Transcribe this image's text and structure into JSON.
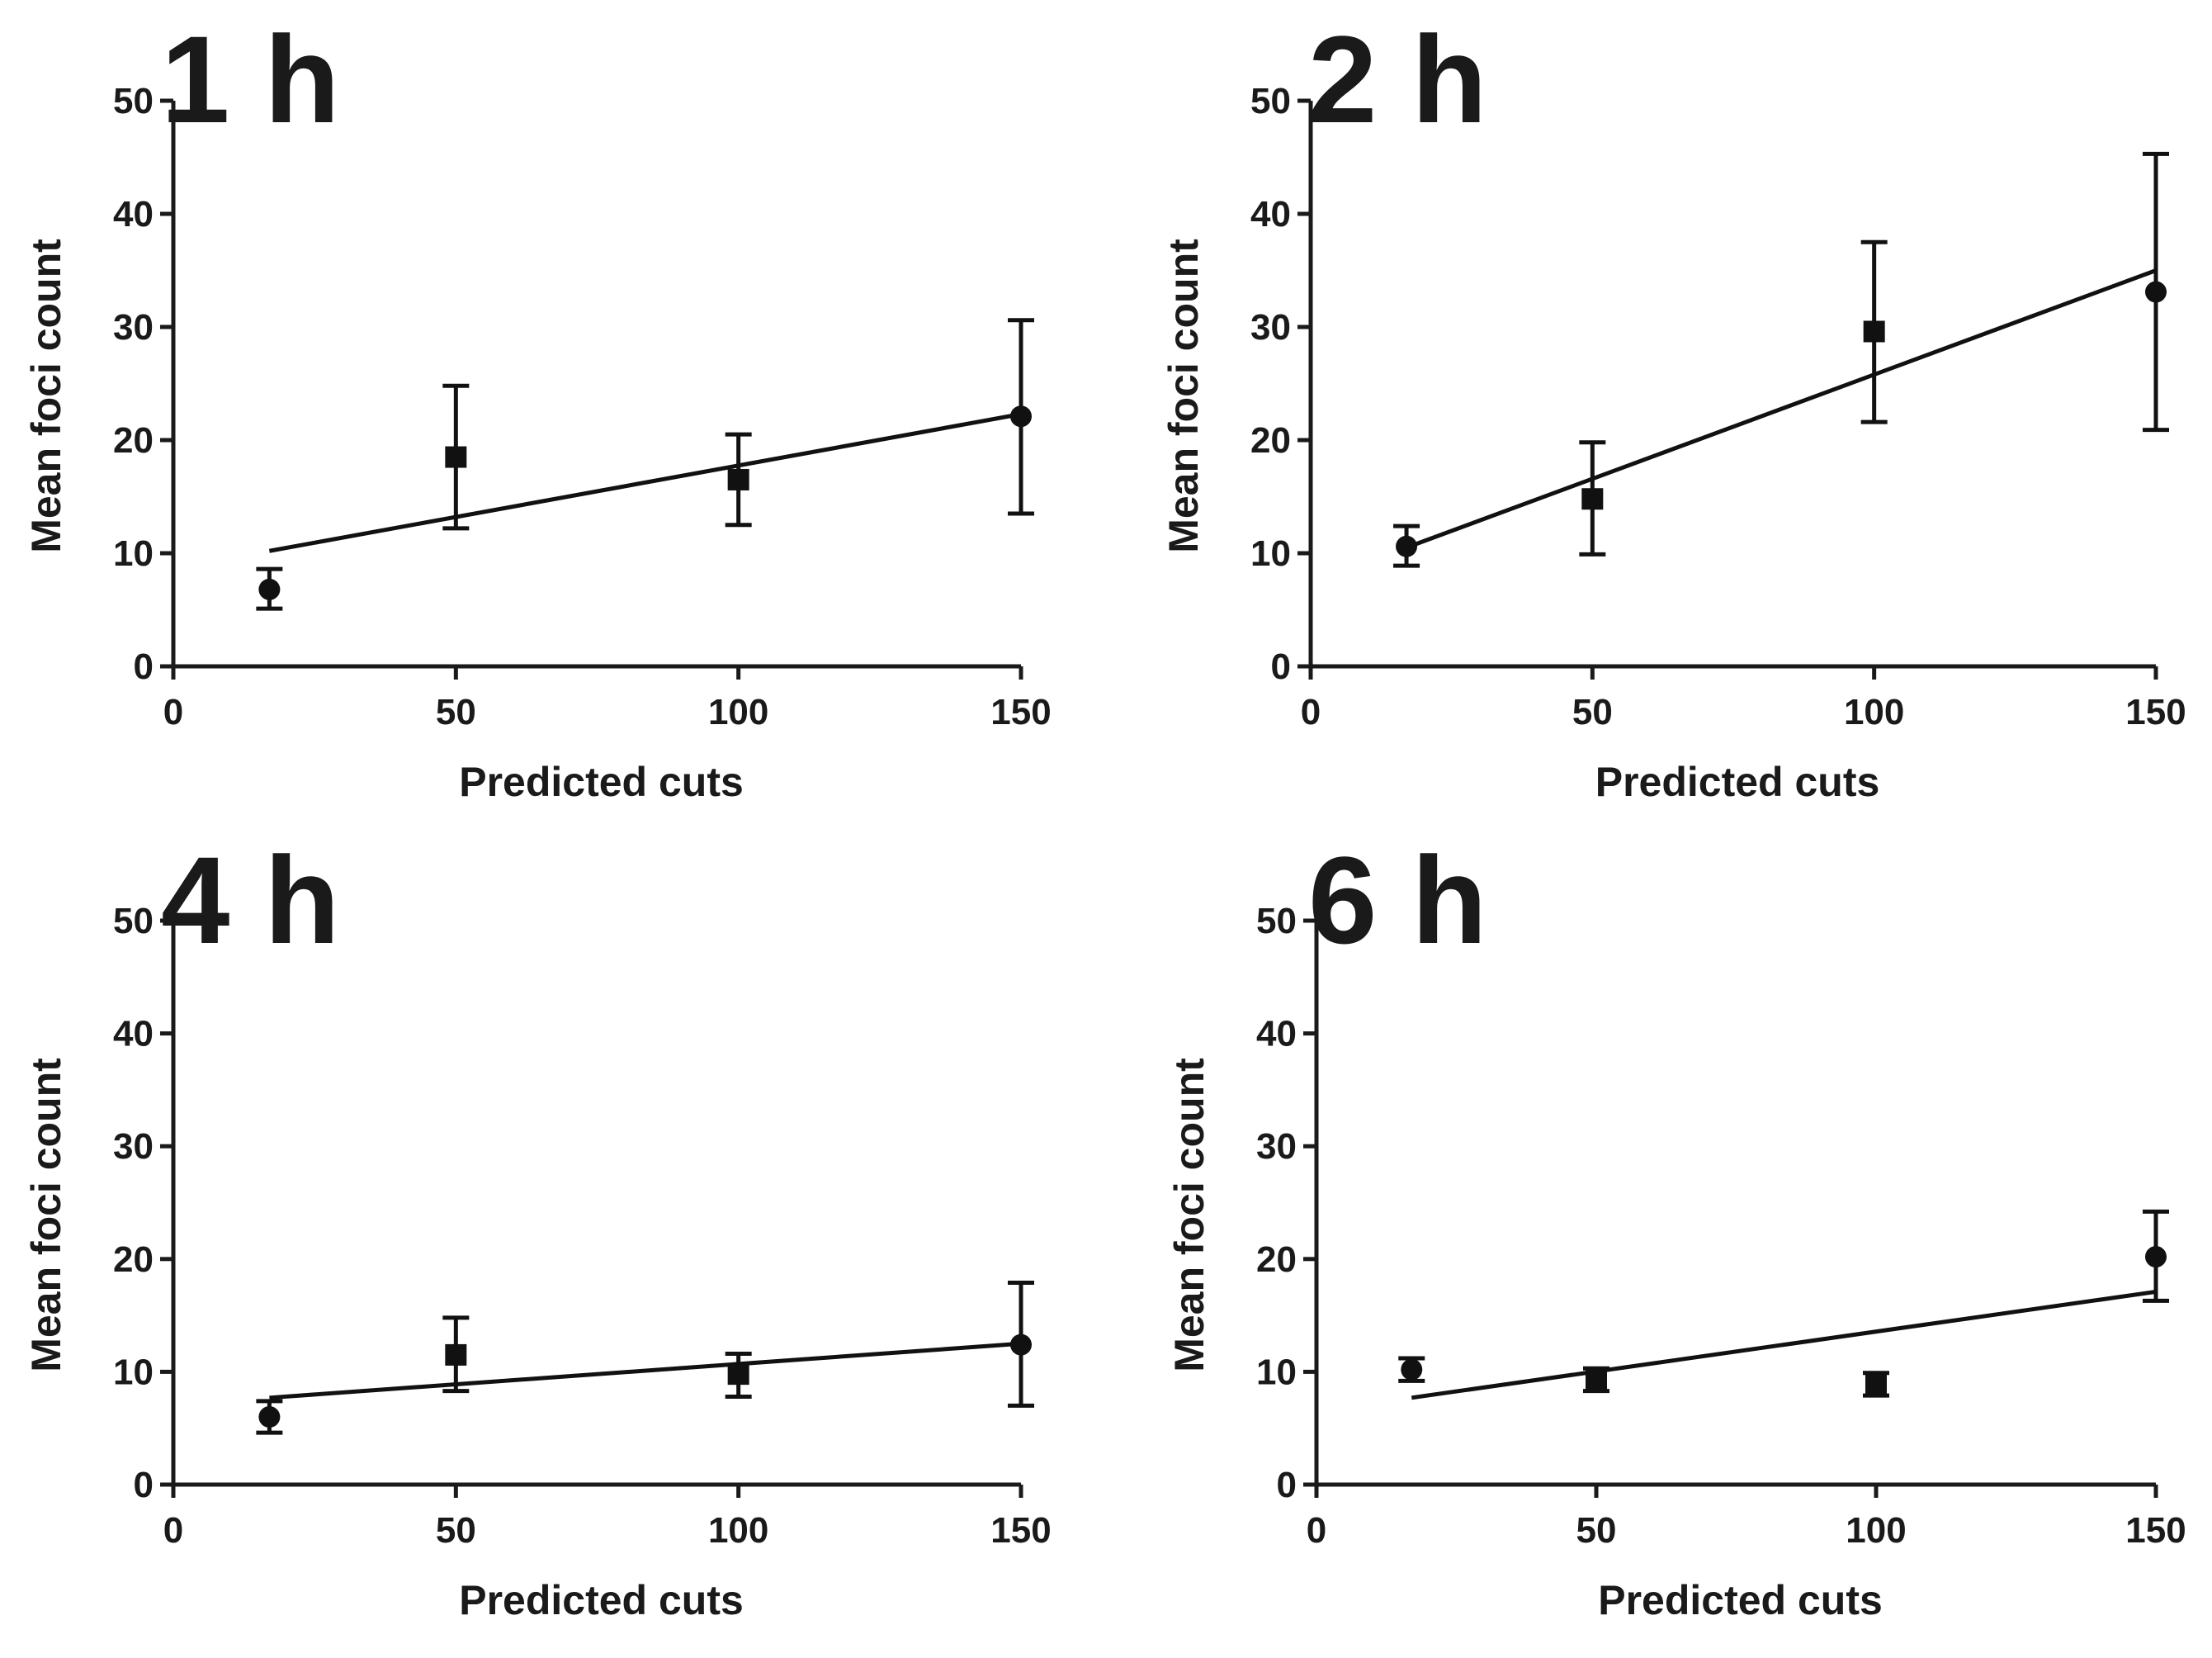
{
  "chart_data": [
    {
      "type": "scatter",
      "title": "1 h",
      "xlabel": "Predicted cuts",
      "ylabel": "Mean foci count",
      "xlim": [
        0,
        150
      ],
      "ylim": [
        0,
        50
      ],
      "xticks": [
        "0",
        "50",
        "100",
        "150"
      ],
      "yticks": [
        "0",
        "10",
        "20",
        "30",
        "40",
        "50"
      ],
      "points": [
        {
          "x": 17,
          "y": 6.8,
          "err_low": 5.1,
          "err_high": 8.6,
          "marker": "circle"
        },
        {
          "x": 50,
          "y": 18.5,
          "err_low": 12.2,
          "err_high": 24.8,
          "marker": "square"
        },
        {
          "x": 100,
          "y": 16.5,
          "err_low": 12.5,
          "err_high": 20.5,
          "marker": "square"
        },
        {
          "x": 150,
          "y": 22.1,
          "err_low": 13.5,
          "err_high": 30.6,
          "marker": "circle"
        }
      ],
      "fit": {
        "x": [
          17,
          150
        ],
        "y": [
          10.2,
          22.3
        ]
      }
    },
    {
      "type": "scatter",
      "title": "2 h",
      "xlabel": "Predicted cuts",
      "ylabel": "Mean foci count",
      "xlim": [
        0,
        150
      ],
      "ylim": [
        0,
        50
      ],
      "xticks": [
        "0",
        "50",
        "100",
        "150"
      ],
      "yticks": [
        "0",
        "10",
        "20",
        "30",
        "40",
        "50"
      ],
      "points": [
        {
          "x": 17,
          "y": 10.6,
          "err_low": 8.9,
          "err_high": 12.4,
          "marker": "circle"
        },
        {
          "x": 50,
          "y": 14.8,
          "err_low": 9.9,
          "err_high": 19.8,
          "marker": "square"
        },
        {
          "x": 100,
          "y": 29.6,
          "err_low": 21.6,
          "err_high": 37.5,
          "marker": "square"
        },
        {
          "x": 150,
          "y": 33.1,
          "err_low": 20.9,
          "err_high": 45.3,
          "marker": "circle"
        }
      ],
      "fit": {
        "x": [
          17,
          150
        ],
        "y": [
          10.5,
          35.0
        ]
      }
    },
    {
      "type": "scatter",
      "title": "4 h",
      "xlabel": "Predicted cuts",
      "ylabel": "Mean foci count",
      "xlim": [
        0,
        150
      ],
      "ylim": [
        0,
        50
      ],
      "xticks": [
        "0",
        "50",
        "100",
        "150"
      ],
      "yticks": [
        "0",
        "10",
        "20",
        "30",
        "40",
        "50"
      ],
      "points": [
        {
          "x": 17,
          "y": 6.0,
          "err_low": 4.6,
          "err_high": 7.4,
          "marker": "circle"
        },
        {
          "x": 50,
          "y": 11.5,
          "err_low": 8.3,
          "err_high": 14.8,
          "marker": "square"
        },
        {
          "x": 100,
          "y": 9.8,
          "err_low": 7.8,
          "err_high": 11.6,
          "marker": "square"
        },
        {
          "x": 150,
          "y": 12.4,
          "err_low": 7.0,
          "err_high": 17.9,
          "marker": "circle"
        }
      ],
      "fit": {
        "x": [
          17,
          150
        ],
        "y": [
          7.7,
          12.5
        ]
      }
    },
    {
      "type": "scatter",
      "title": "6 h",
      "xlabel": "Predicted cuts",
      "ylabel": "Mean foci count",
      "xlim": [
        0,
        150
      ],
      "ylim": [
        0,
        50
      ],
      "xticks": [
        "0",
        "50",
        "100",
        "150"
      ],
      "yticks": [
        "0",
        "10",
        "20",
        "30",
        "40",
        "50"
      ],
      "points": [
        {
          "x": 17,
          "y": 10.2,
          "err_low": 9.2,
          "err_high": 11.2,
          "marker": "circle"
        },
        {
          "x": 50,
          "y": 9.3,
          "err_low": 8.3,
          "err_high": 10.3,
          "marker": "square"
        },
        {
          "x": 100,
          "y": 8.9,
          "err_low": 7.9,
          "err_high": 9.9,
          "marker": "square"
        },
        {
          "x": 150,
          "y": 20.2,
          "err_low": 16.3,
          "err_high": 24.2,
          "marker": "circle"
        }
      ],
      "fit": {
        "x": [
          17,
          150
        ],
        "y": [
          7.7,
          17.1
        ]
      }
    }
  ]
}
